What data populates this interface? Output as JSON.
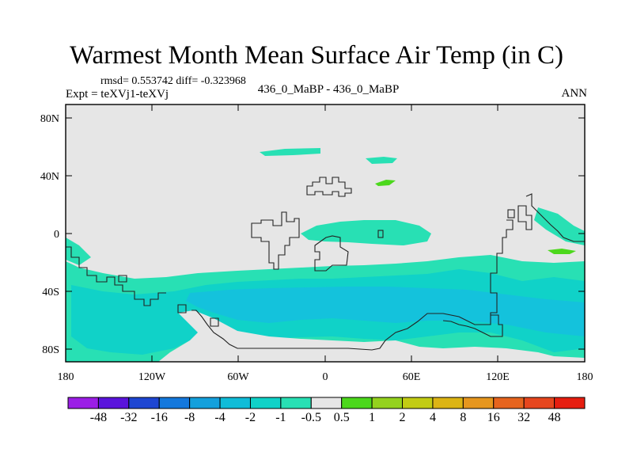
{
  "title": "Warmest Month Mean Surface Air Temp (in C)",
  "stats": "rmsd= 0.553742  diff= -0.323968",
  "left_header": "Expt = teXVj1-teXVj",
  "center_header": "436_0_MaBP - 436_0_MaBP",
  "right_header": "ANN",
  "y_ticks": [
    "80N",
    "40N",
    "0",
    "40S",
    "80S"
  ],
  "x_ticks": [
    "180",
    "120W",
    "60W",
    "0",
    "60E",
    "120E",
    "180"
  ],
  "colorbar_labels": [
    "-48",
    "-32",
    "-16",
    "-8",
    "-4",
    "-2",
    "-1",
    "-0.5",
    "0.5",
    "1",
    "2",
    "4",
    "8",
    "16",
    "32",
    "48"
  ],
  "colorbar_colors": [
    "#9b1ee6",
    "#5a14dc",
    "#1e46d2",
    "#1478dc",
    "#14a0dc",
    "#10bcd8",
    "#10d2c8",
    "#28e0b4",
    "#e6e6e6",
    "#4cd81c",
    "#94d21e",
    "#c2cc14",
    "#dcb414",
    "#e6961e",
    "#e6641e",
    "#e6461e",
    "#e61e10"
  ],
  "colors": {
    "background_field": "#e6e6e6",
    "light_neg": "#28e0b4",
    "mid_neg": "#10d2c8",
    "deep_neg": "#14c2dc",
    "positive": "#4cd81c"
  }
}
